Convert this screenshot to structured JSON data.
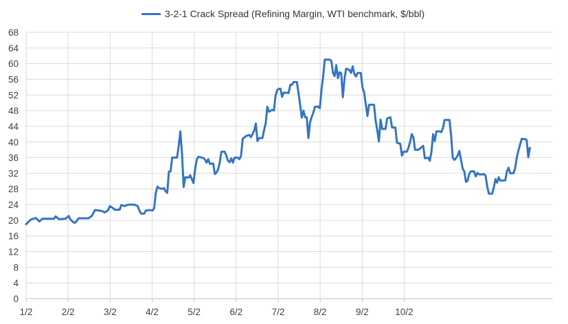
{
  "chart_data": {
    "type": "line",
    "title": "",
    "xlabel": "",
    "ylabel": "",
    "ylim": [
      0,
      68
    ],
    "yticks": [
      0,
      4,
      8,
      12,
      16,
      20,
      24,
      28,
      32,
      36,
      40,
      44,
      48,
      52,
      56,
      60,
      64,
      68
    ],
    "xticks": [
      "1/2",
      "2/2",
      "3/2",
      "4/2",
      "5/2",
      "6/2",
      "7/2",
      "8/2",
      "9/2",
      "10/2"
    ],
    "grid": true,
    "legend_position": "top",
    "series": [
      {
        "name": "3-2-1 Crack Spread (Refining Margin, WTI benchmark, $/bbl)",
        "color": "#3474c4",
        "points": [
          [
            0,
            19.0
          ],
          [
            3,
            20.2
          ],
          [
            6,
            20.6
          ],
          [
            8,
            19.7
          ],
          [
            10,
            20.4
          ],
          [
            14,
            20.4
          ],
          [
            17,
            20.4
          ],
          [
            18,
            21.0
          ],
          [
            20,
            20.3
          ],
          [
            24,
            20.4
          ],
          [
            26,
            21.1
          ],
          [
            27,
            20.2
          ],
          [
            29,
            19.4
          ],
          [
            30,
            19.4
          ],
          [
            32,
            20.5
          ],
          [
            35,
            20.5
          ],
          [
            38,
            20.5
          ],
          [
            40,
            21.1
          ],
          [
            42,
            22.6
          ],
          [
            46,
            22.4
          ],
          [
            48,
            22.0
          ],
          [
            50,
            22.6
          ],
          [
            51,
            23.6
          ],
          [
            53,
            23.1
          ],
          [
            54,
            22.7
          ],
          [
            57,
            22.7
          ],
          [
            58,
            23.9
          ],
          [
            60,
            23.6
          ],
          [
            62,
            24.0
          ],
          [
            66,
            24.0
          ],
          [
            68,
            23.6
          ],
          [
            69,
            22.5
          ],
          [
            70,
            21.7
          ],
          [
            72,
            21.7
          ],
          [
            73,
            22.5
          ],
          [
            75,
            22.6
          ],
          [
            77,
            22.5
          ],
          [
            78,
            23.0
          ],
          [
            79,
            26.9
          ],
          [
            80,
            28.6
          ],
          [
            81,
            28.2
          ],
          [
            83,
            28.0
          ],
          [
            84,
            28.2
          ],
          [
            85,
            27.4
          ],
          [
            86,
            27.0
          ],
          [
            87,
            32.4
          ],
          [
            88,
            32.5
          ],
          [
            89,
            36.0
          ],
          [
            92,
            36.0
          ],
          [
            93,
            39.0
          ],
          [
            94,
            42.7
          ],
          [
            95,
            37.0
          ],
          [
            96,
            28.5
          ],
          [
            97,
            31.0
          ],
          [
            99,
            30.9
          ],
          [
            100,
            31.5
          ],
          [
            101,
            30.5
          ],
          [
            102,
            29.5
          ],
          [
            103,
            33.0
          ],
          [
            104,
            35.5
          ],
          [
            105,
            36.2
          ],
          [
            108,
            35.9
          ],
          [
            109,
            35.5
          ],
          [
            110,
            34.7
          ],
          [
            111,
            35.6
          ],
          [
            112,
            34.4
          ],
          [
            114,
            34.5
          ],
          [
            115,
            31.8
          ],
          [
            116,
            32.2
          ],
          [
            117,
            33.0
          ],
          [
            118,
            34.8
          ],
          [
            119,
            37.5
          ],
          [
            121,
            37.5
          ],
          [
            122,
            36.5
          ],
          [
            123,
            35.2
          ],
          [
            124,
            34.8
          ],
          [
            125,
            35.8
          ],
          [
            126,
            34.7
          ],
          [
            127,
            36.0
          ],
          [
            129,
            36.0
          ],
          [
            130,
            35.6
          ],
          [
            131,
            36.5
          ],
          [
            132,
            40.8
          ],
          [
            134,
            41.5
          ],
          [
            136,
            41.8
          ],
          [
            137,
            41.2
          ],
          [
            138,
            42.0
          ],
          [
            139,
            42.9
          ],
          [
            140,
            44.7
          ],
          [
            141,
            40.2
          ],
          [
            142,
            41.0
          ],
          [
            144,
            41.0
          ],
          [
            145,
            43.0
          ],
          [
            146,
            44.8
          ],
          [
            147,
            49.0
          ],
          [
            148,
            47.7
          ],
          [
            150,
            48.2
          ],
          [
            151,
            48.0
          ],
          [
            152,
            51.8
          ],
          [
            153,
            53.2
          ],
          [
            154,
            53.6
          ],
          [
            155,
            53.6
          ],
          [
            156,
            51.5
          ],
          [
            157,
            52.6
          ],
          [
            160,
            52.5
          ],
          [
            161,
            54.6
          ],
          [
            162,
            54.6
          ],
          [
            163,
            55.3
          ],
          [
            165,
            55.3
          ],
          [
            166,
            52.5
          ],
          [
            167,
            49.5
          ],
          [
            168,
            46.2
          ],
          [
            169,
            48.0
          ],
          [
            170,
            46.3
          ],
          [
            171,
            46.3
          ],
          [
            172,
            41.0
          ],
          [
            173,
            45.0
          ],
          [
            174,
            46.4
          ],
          [
            175,
            47.4
          ],
          [
            176,
            49.0
          ],
          [
            178,
            49.0
          ],
          [
            179,
            48.6
          ],
          [
            180,
            53.4
          ],
          [
            181,
            56.7
          ],
          [
            182,
            61.0
          ],
          [
            185,
            61.0
          ],
          [
            186,
            60.7
          ],
          [
            187,
            57.7
          ],
          [
            188,
            56.8
          ],
          [
            189,
            59.6
          ],
          [
            190,
            56.3
          ],
          [
            191,
            57.8
          ],
          [
            192,
            57.5
          ],
          [
            193,
            51.4
          ],
          [
            194,
            56.0
          ],
          [
            195,
            58.7
          ],
          [
            197,
            58.4
          ],
          [
            198,
            57.6
          ],
          [
            199,
            59.3
          ],
          [
            200,
            57.4
          ],
          [
            201,
            56.7
          ],
          [
            202,
            57.6
          ],
          [
            204,
            57.6
          ],
          [
            205,
            53.9
          ],
          [
            206,
            52.6
          ],
          [
            207,
            49.6
          ],
          [
            208,
            46.6
          ],
          [
            209,
            49.5
          ],
          [
            212,
            49.5
          ],
          [
            213,
            45.5
          ],
          [
            214,
            43.0
          ],
          [
            215,
            40.1
          ],
          [
            216,
            45.7
          ],
          [
            217,
            43.3
          ],
          [
            219,
            43.3
          ],
          [
            220,
            46.0
          ],
          [
            222,
            46.3
          ],
          [
            223,
            43.7
          ],
          [
            225,
            43.7
          ],
          [
            226,
            39.8
          ],
          [
            228,
            39.5
          ],
          [
            229,
            36.5
          ],
          [
            230,
            37.5
          ],
          [
            232,
            37.5
          ],
          [
            233,
            38.5
          ],
          [
            234,
            40.0
          ],
          [
            235,
            42.0
          ],
          [
            236,
            41.2
          ],
          [
            237,
            38.0
          ],
          [
            239,
            38.0
          ],
          [
            240,
            38.3
          ],
          [
            242,
            39.0
          ],
          [
            243,
            35.8
          ],
          [
            245,
            36.0
          ],
          [
            246,
            35.2
          ],
          [
            247,
            37.5
          ],
          [
            248,
            42.0
          ],
          [
            249,
            40.2
          ],
          [
            250,
            42.7
          ],
          [
            252,
            42.7
          ],
          [
            253,
            42.5
          ],
          [
            254,
            43.5
          ],
          [
            255,
            45.6
          ],
          [
            258,
            45.6
          ],
          [
            259,
            41.5
          ],
          [
            260,
            36.0
          ],
          [
            261,
            35.4
          ],
          [
            262,
            35.9
          ],
          [
            263,
            36.5
          ],
          [
            264,
            37.7
          ],
          [
            265,
            35.5
          ],
          [
            266,
            33.2
          ],
          [
            267,
            32.5
          ],
          [
            268,
            29.8
          ],
          [
            269,
            30.1
          ],
          [
            270,
            31.8
          ],
          [
            271,
            32.5
          ],
          [
            273,
            32.5
          ],
          [
            274,
            31.2
          ],
          [
            275,
            32.1
          ],
          [
            276,
            31.7
          ],
          [
            278,
            31.7
          ],
          [
            279,
            31.8
          ],
          [
            280,
            31.4
          ],
          [
            281,
            28.6
          ],
          [
            282,
            26.8
          ],
          [
            284,
            26.8
          ],
          [
            285,
            28.4
          ],
          [
            286,
            30.5
          ],
          [
            287,
            29.6
          ],
          [
            288,
            31.0
          ],
          [
            289,
            30.1
          ],
          [
            292,
            30.2
          ],
          [
            293,
            32.5
          ],
          [
            294,
            33.4
          ],
          [
            295,
            32.0
          ],
          [
            297,
            32.0
          ],
          [
            298,
            33.3
          ],
          [
            299,
            36.0
          ],
          [
            300,
            37.8
          ],
          [
            301,
            39.3
          ],
          [
            302,
            40.8
          ],
          [
            304,
            40.7
          ],
          [
            305,
            40.5
          ],
          [
            306,
            36.1
          ],
          [
            307,
            38.5
          ]
        ]
      }
    ]
  }
}
